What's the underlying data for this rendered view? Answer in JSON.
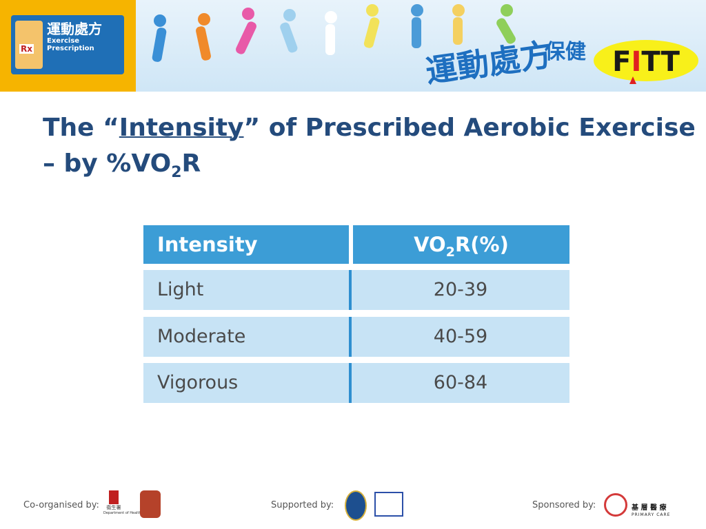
{
  "header": {
    "logo_cn": "運動處方",
    "logo_en": "Exercise Prescription",
    "logo_rx": "Rx",
    "banner_cn1": "運動處方",
    "banner_cn2": "保健",
    "fitt": {
      "f": "F",
      "i": "I",
      "tt": "TT"
    }
  },
  "title": {
    "open": "The “",
    "keyword": "Intensity",
    "rest": "” of Prescribed Aerobic Exercise",
    "line2": "– by %VO",
    "sub": "2",
    "end": "R"
  },
  "table": {
    "columns": [
      "Intensity",
      {
        "main": "VO",
        "sub": "2",
        "rest": "R(%)"
      }
    ],
    "rows": [
      [
        "Light",
        "20-39"
      ],
      [
        "Moderate",
        "40-59"
      ],
      [
        "Vigorous",
        "60-84"
      ]
    ]
  },
  "footer": {
    "coorganised": "Co-organised by:",
    "doh_cn": "衞生署",
    "doh_en": "Department of Health",
    "supported": "Supported by:",
    "sponsored": "Sponsored by:",
    "pc_cn": "基 層 醫 療",
    "pc_en": "PRIMARY CARE"
  }
}
